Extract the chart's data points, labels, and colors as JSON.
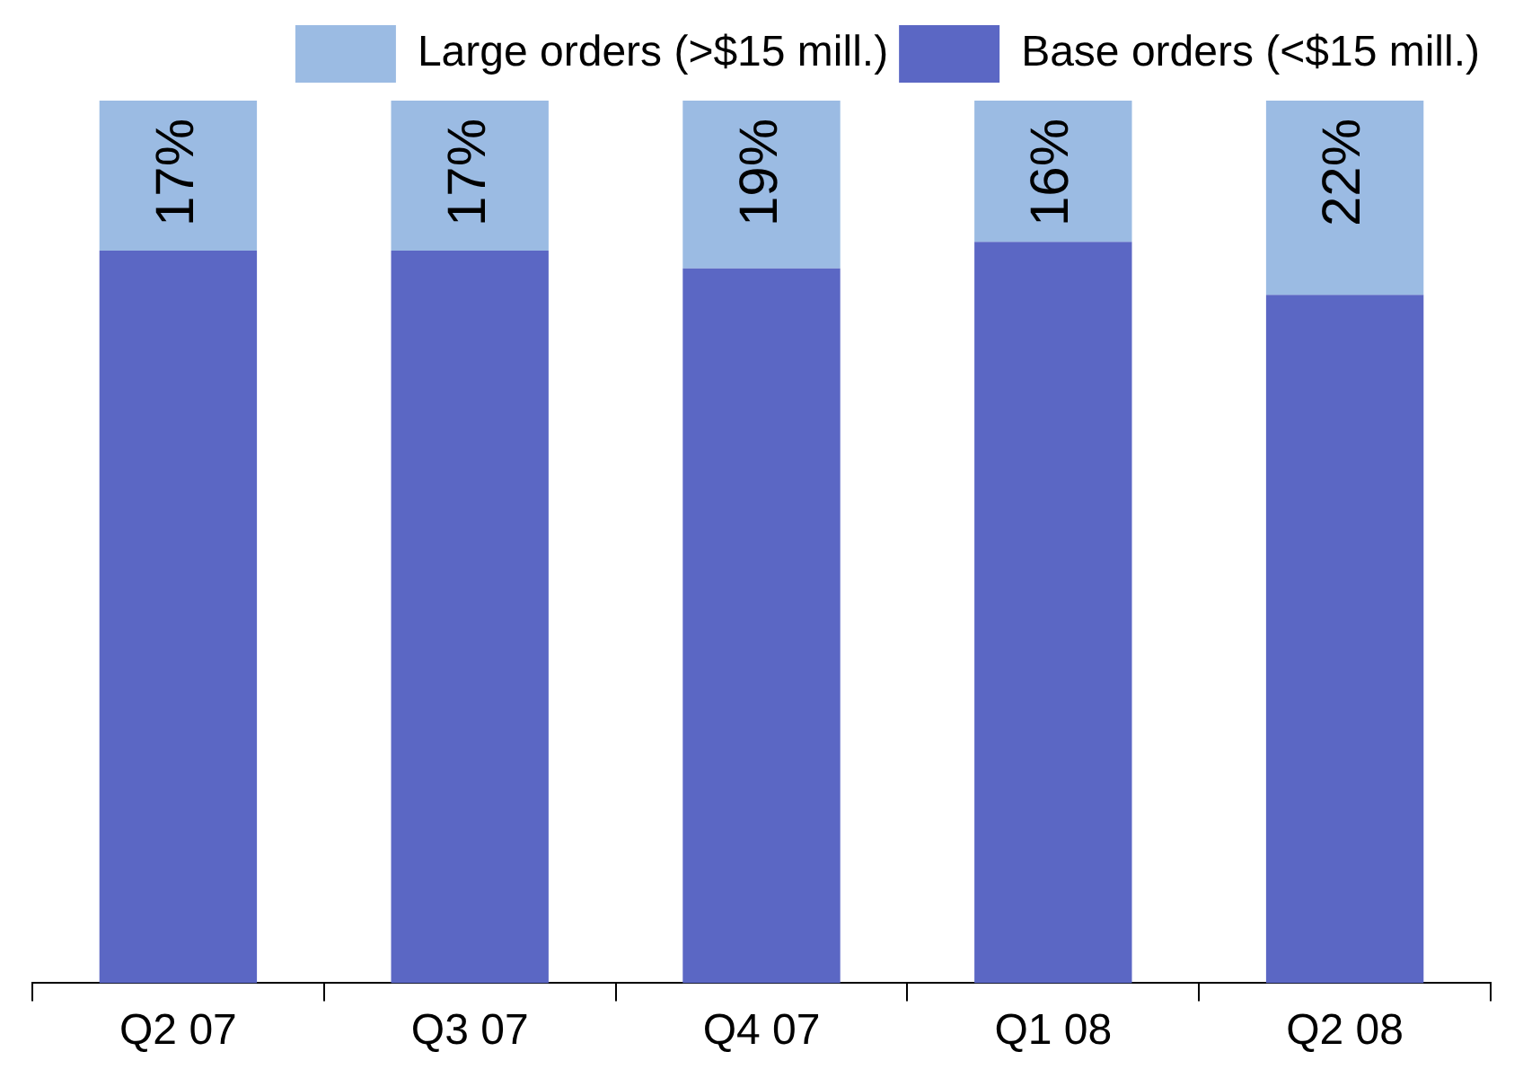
{
  "chart_data": {
    "type": "bar",
    "stacked": true,
    "categories": [
      "Q2 07",
      "Q3 07",
      "Q4 07",
      "Q1 08",
      "Q2 08"
    ],
    "series": [
      {
        "name": "Base orders (<$15 mill.)",
        "color": "#5b67c4",
        "values": [
          83,
          83,
          81,
          84,
          78
        ]
      },
      {
        "name": "Large orders (>$15 mill.)",
        "color": "#9bbbe3",
        "values": [
          17,
          17,
          19,
          16,
          22
        ],
        "value_labels": [
          "17%",
          "17%",
          "19%",
          "16%",
          "22%"
        ]
      }
    ],
    "ylim": [
      0,
      100
    ],
    "tick_labels": "x",
    "grid": false,
    "legend": "top right"
  }
}
